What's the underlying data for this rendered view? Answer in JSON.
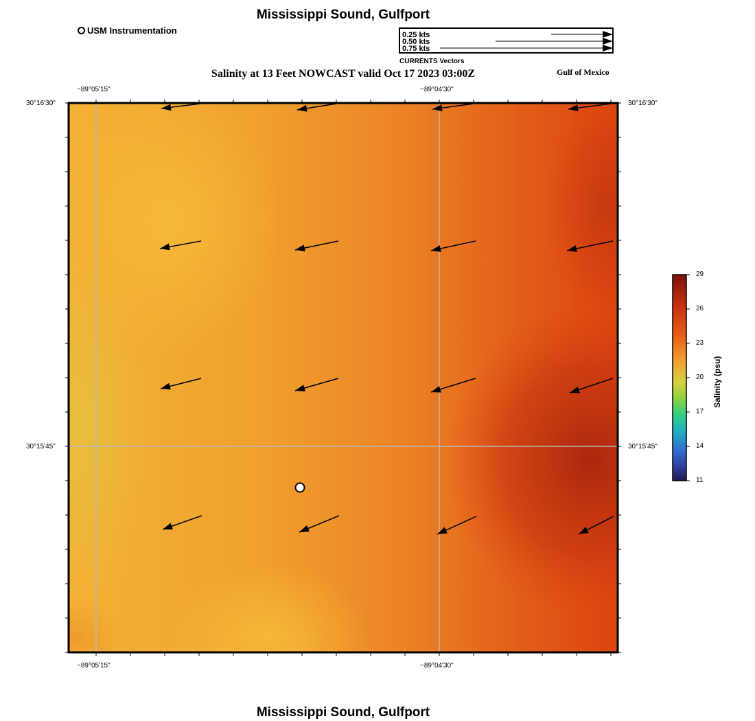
{
  "header": {
    "title": "Mississippi Sound, Gulfport",
    "subtitle": "Salinity at 13 Feet NOWCAST valid Oct 17 2023 03:00Z",
    "region": "Gulf of Mexico"
  },
  "footer": {
    "title": "Mississippi Sound, Gulfport"
  },
  "legend": {
    "station_label": "USM Instrumentation",
    "vector_scale": [
      "0.25 kts",
      "0.50 kts",
      "0.75 kts"
    ],
    "vector_caption": "CURRENTS Vectors"
  },
  "axes": {
    "lon_labels": [
      "−89°05'15\"",
      "−89°04'30\""
    ],
    "lat_labels": [
      "30°16'30\"",
      "30°15'45\""
    ]
  },
  "colorbar": {
    "title": "Salinity (psu)",
    "ticks": [
      "29",
      "26",
      "23",
      "20",
      "17",
      "14",
      "11"
    ],
    "stops": [
      "#7a1408",
      "#c83010",
      "#e8601a",
      "#f0a030",
      "#d8d040",
      "#90d040",
      "#30d080",
      "#20b0c0",
      "#3070d0",
      "#3040a0",
      "#201a50"
    ]
  },
  "map_colors": {
    "warm_west": "#f4b236",
    "mid": "#ee8a26",
    "east": "#de4a10",
    "deep": "#a8260c"
  }
}
